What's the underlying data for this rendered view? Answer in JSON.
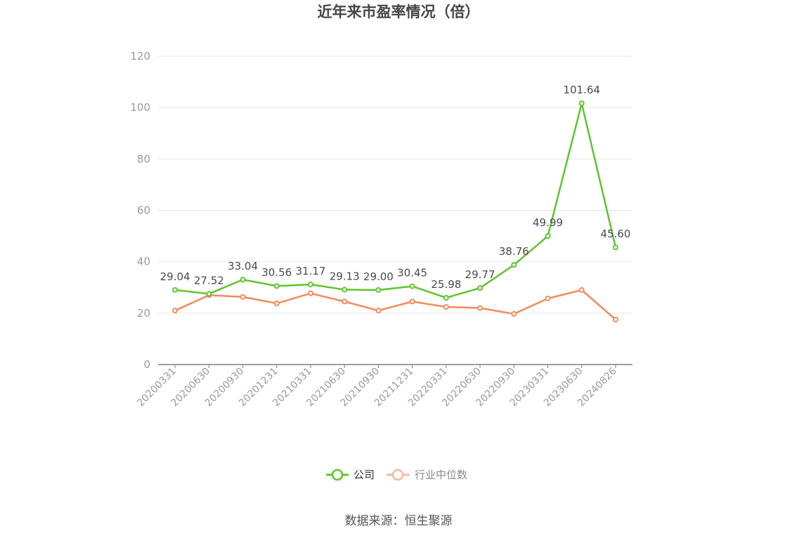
{
  "chart_data": {
    "type": "line",
    "title": "近年来市盈率情况（倍）",
    "categories": [
      "20200331",
      "20200630",
      "20200930",
      "20201231",
      "20210331",
      "20210630",
      "20210930",
      "20211231",
      "20220331",
      "20220630",
      "20220930",
      "20230331",
      "20230630",
      "20240826"
    ],
    "ylim": [
      0,
      120
    ],
    "yticks": [
      0,
      20,
      40,
      60,
      80,
      100,
      120
    ],
    "grid": true,
    "legend_position": "bottom",
    "series": [
      {
        "name": "公司",
        "color": "#5ec42e",
        "values": [
          29.04,
          27.52,
          33.04,
          30.56,
          31.17,
          29.13,
          29.0,
          30.45,
          25.98,
          29.77,
          38.76,
          49.99,
          101.64,
          45.6
        ],
        "labels": [
          "29.04",
          "27.52",
          "33.04",
          "30.56",
          "31.17",
          "29.13",
          "29.00",
          "30.45",
          "25.98",
          "29.77",
          "38.76",
          "49.99",
          "101.64",
          "45.60"
        ]
      },
      {
        "name": "行业中位数",
        "color": "#f08a5d",
        "values": [
          21.0,
          27.0,
          26.3,
          23.8,
          27.7,
          24.5,
          21.0,
          24.5,
          22.4,
          22.0,
          19.7,
          25.7,
          29.0,
          17.5
        ]
      }
    ],
    "source": "数据来源：恒生聚源"
  }
}
